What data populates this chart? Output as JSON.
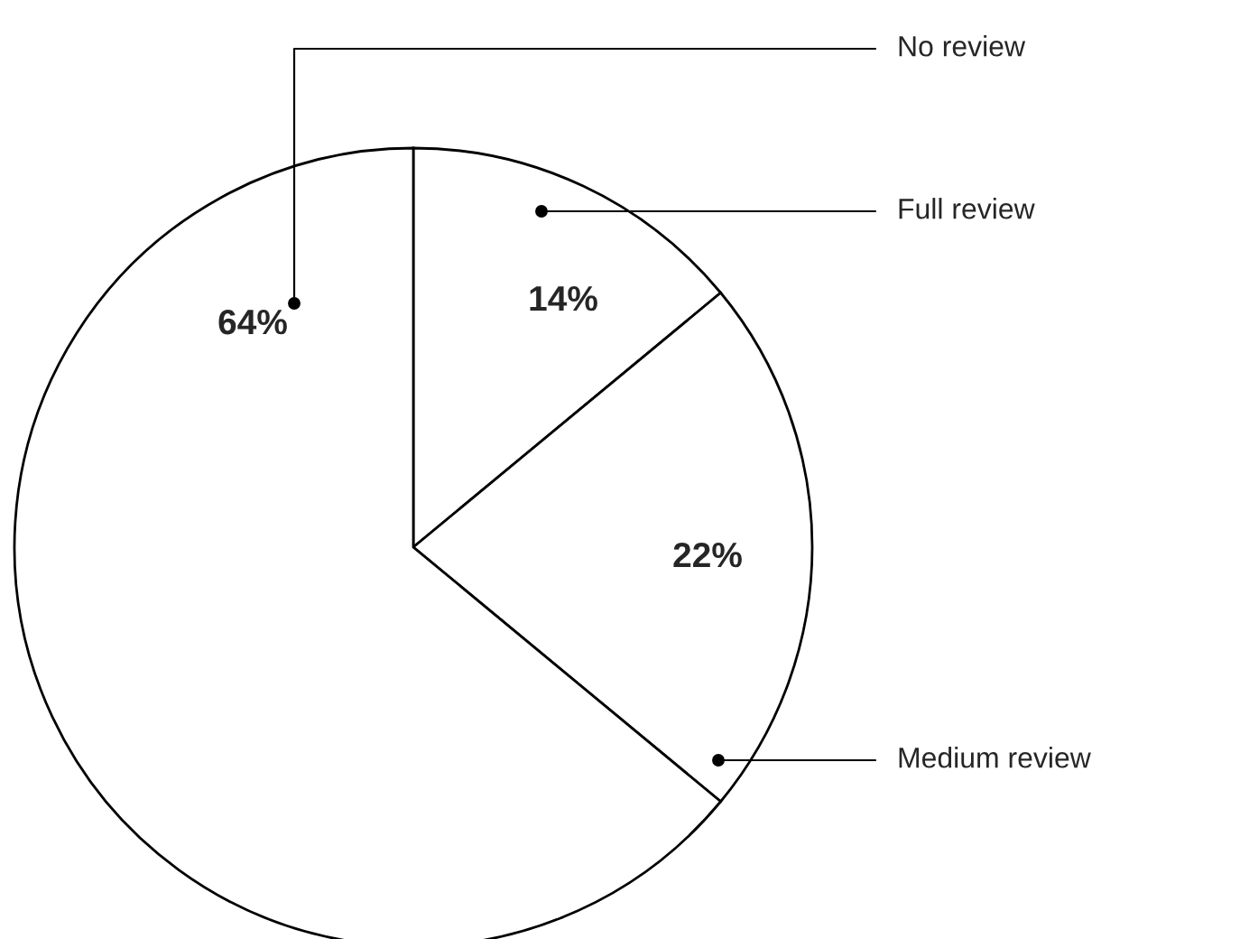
{
  "chart_data": {
    "type": "pie",
    "categories": [
      "Full review",
      "Medium review",
      "No review"
    ],
    "values": [
      14,
      22,
      64
    ],
    "value_labels": [
      "14%",
      "22%",
      "64%"
    ],
    "colors": [
      "#ffffff",
      "#ffffff",
      "#ffffff"
    ],
    "legend": false
  }
}
